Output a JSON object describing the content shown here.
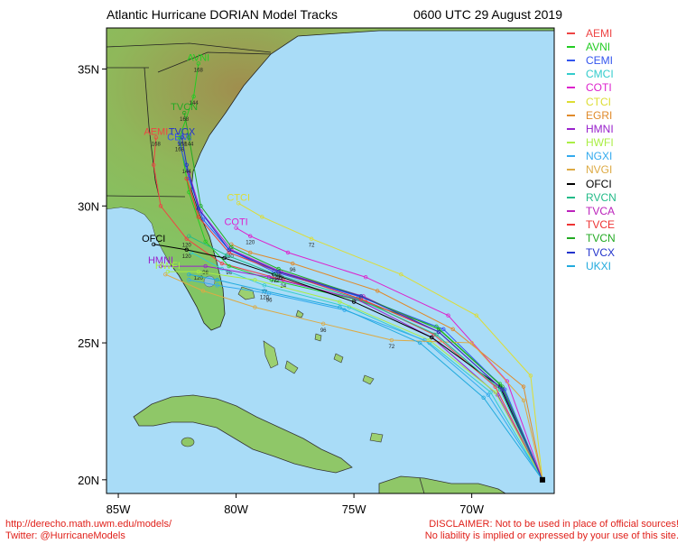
{
  "title": "Atlantic Hurricane DORIAN Model Tracks",
  "valid_time": "0600 UTC 29 August 2019",
  "axes": {
    "lon_ticks": [
      "85W",
      "80W",
      "75W",
      "70W"
    ],
    "lat_ticks": [
      "35N",
      "30N",
      "25N",
      "20N"
    ]
  },
  "map_extent": {
    "lon_min": -85.5,
    "lon_max": -66.5,
    "lat_min": 19.5,
    "lat_max": 36.5
  },
  "start_point": {
    "lon": -67.0,
    "lat": 20.0
  },
  "colors": {
    "ocean": "#a9dcf7",
    "land": "#8cc76a",
    "land_high": "#9e8a4c",
    "border": "#000000",
    "footer_red": "#e0201a"
  },
  "legend": [
    {
      "name": "AEMI",
      "color": "#ee4444"
    },
    {
      "name": "AVNI",
      "color": "#22cc22"
    },
    {
      "name": "CEMI",
      "color": "#3355ee"
    },
    {
      "name": "CMCI",
      "color": "#33cccc"
    },
    {
      "name": "COTI",
      "color": "#dd22cc"
    },
    {
      "name": "CTCI",
      "color": "#dddd33"
    },
    {
      "name": "EGRI",
      "color": "#e08a2a"
    },
    {
      "name": "HMNI",
      "color": "#9922cc"
    },
    {
      "name": "HWFI",
      "color": "#aaee44"
    },
    {
      "name": "NGXI",
      "color": "#33aaee"
    },
    {
      "name": "NVGI",
      "color": "#ddaa44"
    },
    {
      "name": "OFCI",
      "color": "#000000"
    },
    {
      "name": "RVCN",
      "color": "#22bb88"
    },
    {
      "name": "TVCA",
      "color": "#bb22bb"
    },
    {
      "name": "TVCE",
      "color": "#ee3333"
    },
    {
      "name": "TVCN",
      "color": "#22aa22"
    },
    {
      "name": "TVCX",
      "color": "#2233cc"
    },
    {
      "name": "UKXI",
      "color": "#22aadd"
    }
  ],
  "tracks": [
    {
      "name": "AEMI",
      "label": "AEMI",
      "points": [
        [
          -67,
          20
        ],
        [
          -69,
          23.4
        ],
        [
          -71.6,
          25.3
        ],
        [
          -74.5,
          26.5
        ],
        [
          -78,
          27.3
        ],
        [
          -80.6,
          27.9
        ],
        [
          -82.1,
          28.8
        ],
        [
          -83.2,
          30
        ],
        [
          -83.5,
          31.5
        ],
        [
          -83.4,
          32.5
        ]
      ],
      "hours": [
        [
          4,
          "24"
        ],
        [
          6,
          "120"
        ],
        [
          9,
          "168"
        ]
      ]
    },
    {
      "name": "AVNI",
      "label": "AVNI",
      "points": [
        [
          -67,
          20
        ],
        [
          -68.8,
          23.5
        ],
        [
          -71.5,
          25.6
        ],
        [
          -75,
          26.6
        ],
        [
          -78.5,
          27.3
        ],
        [
          -80.3,
          27.8
        ],
        [
          -81.3,
          28.7
        ],
        [
          -82,
          30.5
        ],
        [
          -82.4,
          32.5
        ],
        [
          -81.8,
          34
        ],
        [
          -81.6,
          35.2
        ]
      ],
      "hours": [
        [
          5,
          "96"
        ],
        [
          9,
          "144"
        ],
        [
          10,
          "168"
        ]
      ]
    },
    {
      "name": "CEMI",
      "label": "CEMI",
      "points": [
        [
          -67,
          20
        ],
        [
          -68.6,
          23.3
        ],
        [
          -71.2,
          25.5
        ],
        [
          -74.8,
          26.7
        ],
        [
          -78.4,
          27.6
        ],
        [
          -80.3,
          28.4
        ],
        [
          -81.4,
          29.5
        ],
        [
          -82,
          31
        ],
        [
          -82.4,
          32.3
        ]
      ],
      "hours": [
        [
          5,
          "120"
        ],
        [
          8,
          "168"
        ]
      ]
    },
    {
      "name": "CMCI",
      "label": "",
      "points": [
        [
          -67,
          20
        ],
        [
          -69.2,
          23.2
        ],
        [
          -71.8,
          25
        ],
        [
          -75.2,
          26.3
        ],
        [
          -78.8,
          27.1
        ],
        [
          -80.6,
          27.7
        ],
        [
          -81.9,
          28.3
        ]
      ],
      "hours": [
        [
          4,
          "72"
        ]
      ]
    },
    {
      "name": "COTI",
      "label": "COTI",
      "points": [
        [
          -67,
          20
        ],
        [
          -68.5,
          23.6
        ],
        [
          -71,
          26
        ],
        [
          -74.5,
          27.4
        ],
        [
          -77.8,
          28.3
        ],
        [
          -79.4,
          28.9
        ],
        [
          -80,
          29.2
        ]
      ],
      "hours": [
        [
          5,
          "120"
        ]
      ]
    },
    {
      "name": "CTCI",
      "label": "CTCI",
      "points": [
        [
          -67,
          20
        ],
        [
          -67.5,
          23.8
        ],
        [
          -69.8,
          26
        ],
        [
          -73,
          27.5
        ],
        [
          -76.8,
          28.8
        ],
        [
          -78.9,
          29.6
        ],
        [
          -79.9,
          30.1
        ]
      ],
      "hours": [
        [
          4,
          "72"
        ]
      ]
    },
    {
      "name": "EGRI",
      "label": "",
      "points": [
        [
          -67,
          20
        ],
        [
          -67.8,
          23.4
        ],
        [
          -70.8,
          25.5
        ],
        [
          -74,
          26.9
        ],
        [
          -77.6,
          27.9
        ],
        [
          -79.4,
          28.3
        ],
        [
          -80.2,
          28.6
        ]
      ],
      "hours": [
        [
          4,
          "96"
        ]
      ]
    },
    {
      "name": "HMNI",
      "label": "HMNI",
      "points": [
        [
          -67,
          20
        ],
        [
          -68.9,
          23.1
        ],
        [
          -71.7,
          25.2
        ],
        [
          -74.9,
          26.6
        ],
        [
          -78.6,
          27.4
        ],
        [
          -81.3,
          27.8
        ],
        [
          -83.2,
          27.8
        ]
      ],
      "hours": [
        [
          5,
          "96"
        ]
      ]
    },
    {
      "name": "HWFI",
      "label": "HWFI",
      "points": [
        [
          -67,
          20
        ],
        [
          -69,
          23.2
        ],
        [
          -71.8,
          25.1
        ],
        [
          -75.6,
          26.5
        ],
        [
          -79.2,
          27.3
        ],
        [
          -81.6,
          27.6
        ],
        [
          -82.9,
          27.6
        ]
      ],
      "hours": [
        [
          5,
          "120"
        ]
      ]
    },
    {
      "name": "NGXI",
      "label": "",
      "points": [
        [
          -67,
          20
        ],
        [
          -69.3,
          23.1
        ],
        [
          -72,
          25.1
        ],
        [
          -75.4,
          26.2
        ],
        [
          -78.6,
          26.8
        ],
        [
          -80.8,
          27.1
        ],
        [
          -82,
          27.3
        ]
      ],
      "hours": [
        [
          4,
          "96"
        ]
      ]
    },
    {
      "name": "NVGI",
      "label": "",
      "points": [
        [
          -67,
          20
        ],
        [
          -67.8,
          22.9
        ],
        [
          -70,
          25
        ],
        [
          -73.4,
          25.1
        ],
        [
          -76.3,
          25.7
        ],
        [
          -79.2,
          26.3
        ],
        [
          -81.4,
          26.9
        ],
        [
          -83,
          27.5
        ]
      ],
      "hours": [
        [
          3,
          "72"
        ],
        [
          4,
          "96"
        ]
      ]
    },
    {
      "name": "OFCI",
      "label": "OFCI",
      "points": [
        [
          -67,
          20
        ],
        [
          -68.8,
          23.4
        ],
        [
          -71.7,
          25.2
        ],
        [
          -75,
          26.5
        ],
        [
          -78.4,
          27.5
        ],
        [
          -80.5,
          28.1
        ],
        [
          -82.1,
          28.4
        ],
        [
          -83.5,
          28.6
        ]
      ],
      "hours": [
        [
          4,
          "72"
        ],
        [
          6,
          "120"
        ]
      ]
    },
    {
      "name": "RVCN",
      "label": "",
      "points": [
        [
          -67,
          20
        ],
        [
          -68.8,
          23.3
        ],
        [
          -71.5,
          25.3
        ],
        [
          -74.8,
          26.6
        ],
        [
          -78.3,
          27.5
        ],
        [
          -80.4,
          28.2
        ],
        [
          -82,
          28.9
        ]
      ],
      "hours": [
        [
          4,
          "72"
        ]
      ]
    },
    {
      "name": "TVCA",
      "label": "",
      "points": [
        [
          -67,
          20
        ],
        [
          -68.7,
          23.3
        ],
        [
          -71.4,
          25.4
        ],
        [
          -74.6,
          26.7
        ],
        [
          -78.1,
          27.6
        ],
        [
          -80.2,
          28.4
        ],
        [
          -81.5,
          29.8
        ],
        [
          -82,
          31.2
        ]
      ],
      "hours": [
        [
          4,
          "72"
        ]
      ]
    },
    {
      "name": "TVCE",
      "label": "",
      "points": [
        [
          -67,
          20
        ],
        [
          -68.7,
          23.3
        ],
        [
          -71.4,
          25.4
        ],
        [
          -74.7,
          26.6
        ],
        [
          -78.2,
          27.6
        ],
        [
          -80.3,
          28.3
        ],
        [
          -81.6,
          29.6
        ],
        [
          -82.1,
          31
        ]
      ],
      "hours": [
        [
          4,
          "96"
        ]
      ]
    },
    {
      "name": "TVCN",
      "label": "TVCN",
      "points": [
        [
          -67,
          20
        ],
        [
          -68.7,
          23.4
        ],
        [
          -71.4,
          25.5
        ],
        [
          -74.7,
          26.7
        ],
        [
          -78.2,
          27.7
        ],
        [
          -80.2,
          28.5
        ],
        [
          -81.5,
          30
        ],
        [
          -82,
          32.5
        ],
        [
          -82.2,
          33.4
        ]
      ],
      "hours": [
        [
          4,
          "96"
        ],
        [
          7,
          "144"
        ],
        [
          8,
          "168"
        ]
      ]
    },
    {
      "name": "TVCX",
      "label": "TVCX",
      "points": [
        [
          -67,
          20
        ],
        [
          -68.7,
          23.3
        ],
        [
          -71.4,
          25.4
        ],
        [
          -74.7,
          26.7
        ],
        [
          -78.2,
          27.6
        ],
        [
          -80.3,
          28.4
        ],
        [
          -81.6,
          29.9
        ],
        [
          -82.1,
          31.5
        ],
        [
          -82.3,
          32.5
        ]
      ],
      "hours": [
        [
          7,
          "144"
        ],
        [
          8,
          "168"
        ]
      ]
    },
    {
      "name": "UKXI",
      "label": "",
      "points": [
        [
          -67,
          20
        ],
        [
          -69.5,
          23
        ],
        [
          -72.2,
          25
        ],
        [
          -75.6,
          26.3
        ],
        [
          -78.8,
          26.9
        ],
        [
          -80.8,
          27.3
        ],
        [
          -82,
          27.5
        ]
      ],
      "hours": [
        [
          4,
          "120"
        ]
      ]
    }
  ],
  "footer": {
    "url": "http://derecho.math.uwm.edu/models/",
    "twitter": "Twitter: @HurricaneModels",
    "disclaimer_line1": "DISCLAIMER: Not to be used in place of official sources!",
    "disclaimer_line2": "No liability is implied or expressed by your use of this site."
  }
}
